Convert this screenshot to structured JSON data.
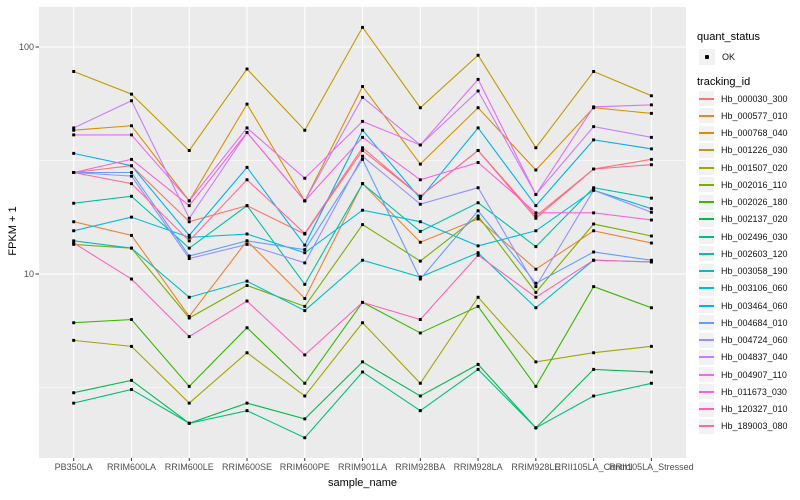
{
  "figure": {
    "background": "#FFFFFF",
    "panel_background": "#EBEBEB",
    "gridline_color": "#FFFFFF",
    "tick_color": "#333333",
    "tick_label_color": "#4D4D4D",
    "point_color": "#000000",
    "legend_key_fill": "#F2F2F2"
  },
  "chart_data": {
    "type": "line",
    "title": "",
    "xlabel": "sample_name",
    "ylabel": "FPKM + 1",
    "yscale": "log10",
    "ylim": [
      1.55,
      145
    ],
    "yticks": [
      10,
      100
    ],
    "ytick_labels": [
      "10",
      "100"
    ],
    "y_minor_gridlines": [
      3.162,
      31.62
    ],
    "grid": true,
    "legend_position": "right",
    "categories": [
      "PB350LA",
      "RRIM600LA",
      "RRIM600LE",
      "RRIM600SE",
      "RRIM600PE",
      "RRIM901LA",
      "RRIM928BA",
      "RRIM928LA",
      "RRIM928LE",
      "RRII105LA_Control",
      "RRII105LA_Stressed"
    ],
    "legend": {
      "quant_status_title": "quant_status",
      "quant_status_items": [
        {
          "label": "OK",
          "marker": "point",
          "color": "#000000"
        }
      ],
      "tracking_title": "tracking_id"
    },
    "series": [
      {
        "name": "Hb_000030_300",
        "color": "#F8766D",
        "values": [
          28,
          30,
          17,
          20,
          15,
          35,
          22,
          35,
          18,
          29,
          32
        ]
      },
      {
        "name": "Hb_000577_010",
        "color": "#EA8331",
        "values": [
          17,
          14.8,
          6.5,
          14,
          7.8,
          25,
          13.8,
          17.5,
          10.5,
          15.5,
          13.7
        ]
      },
      {
        "name": "Hb_000768_040",
        "color": "#D89000",
        "values": [
          43,
          45,
          21,
          56,
          21,
          67,
          30.5,
          54,
          28.7,
          54,
          51
        ]
      },
      {
        "name": "Hb_001226_030",
        "color": "#C09B00",
        "values": [
          78,
          62,
          35,
          80,
          43,
          122,
          54,
          92,
          36,
          78,
          61
        ]
      },
      {
        "name": "Hb_001507_020",
        "color": "#A3A500",
        "values": [
          5.1,
          4.8,
          2.7,
          4.5,
          2.9,
          6.1,
          3.3,
          7.9,
          4.1,
          4.5,
          4.8
        ]
      },
      {
        "name": "Hb_002016_110",
        "color": "#7CAE00",
        "values": [
          13.5,
          13,
          6.4,
          8.9,
          7.2,
          16.5,
          11.4,
          18,
          8.3,
          16.6,
          14.7
        ]
      },
      {
        "name": "Hb_002026_180",
        "color": "#39B600",
        "values": [
          6.1,
          6.3,
          3.2,
          5.8,
          3.3,
          7.5,
          5.5,
          7.2,
          3.2,
          8.8,
          7.1
        ]
      },
      {
        "name": "Hb_002137_020",
        "color": "#00BB4E",
        "values": [
          3.0,
          3.4,
          2.2,
          2.7,
          2.3,
          4.1,
          2.9,
          4.0,
          2.1,
          3.8,
          3.7
        ]
      },
      {
        "name": "Hb_002496_030",
        "color": "#00BF7D",
        "values": [
          2.7,
          3.1,
          2.2,
          2.5,
          1.9,
          3.7,
          2.5,
          3.8,
          2.1,
          2.9,
          3.3
        ]
      },
      {
        "name": "Hb_002603_120",
        "color": "#00C1A3",
        "values": [
          20.5,
          22,
          13,
          20,
          9,
          25,
          15.4,
          20.6,
          13.2,
          24,
          21.6
        ]
      },
      {
        "name": "Hb_003058_190",
        "color": "#00BFC4",
        "values": [
          14,
          13,
          7.9,
          9.3,
          6.9,
          11.5,
          9.7,
          12.4,
          7.1,
          11.5,
          11.3
        ]
      },
      {
        "name": "Hb_003106_060",
        "color": "#00BAE0",
        "values": [
          15.5,
          17.8,
          14.5,
          15,
          12.4,
          19.1,
          17,
          13.3,
          15.5,
          23.4,
          19.4
        ]
      },
      {
        "name": "Hb_003464_060",
        "color": "#00B0F6",
        "values": [
          34,
          30,
          14.8,
          29.5,
          13.4,
          43,
          21.5,
          44,
          20,
          39,
          35.6
        ]
      },
      {
        "name": "Hb_004684_010",
        "color": "#619CFF",
        "values": [
          28,
          28,
          12,
          14,
          12.8,
          32,
          9.5,
          19,
          9.1,
          12.5,
          11.5
        ]
      },
      {
        "name": "Hb_004724_060",
        "color": "#9590FF",
        "values": [
          28,
          27,
          11.7,
          13.5,
          11.2,
          33,
          20.3,
          24,
          8.8,
          23.4,
          18.7
        ]
      },
      {
        "name": "Hb_004837_040",
        "color": "#C77CFF",
        "values": [
          44,
          58,
          17.6,
          42,
          21,
          60,
          37,
          64,
          22.4,
          44.6,
          40
        ]
      },
      {
        "name": "Hb_004907_110",
        "color": "#E76BF3",
        "values": [
          41,
          41,
          21,
          44,
          26.4,
          47,
          37,
          72,
          22.4,
          54.5,
          55.6
        ]
      },
      {
        "name": "Hb_011673_030",
        "color": "#FA62DB",
        "values": [
          28,
          32,
          20,
          42,
          21,
          40,
          26,
          31,
          18.6,
          18.6,
          17.3
        ]
      },
      {
        "name": "Hb_120327_010",
        "color": "#FF62BC",
        "values": [
          13.7,
          9.5,
          5.3,
          7.6,
          4.4,
          7.5,
          6.3,
          12.1,
          7.9,
          11.5,
          11.3
        ]
      },
      {
        "name": "Hb_189003_080",
        "color": "#FF6A98",
        "values": [
          28,
          25,
          14,
          26,
          15.1,
          36,
          22,
          35,
          17.6,
          29,
          30.3
        ]
      }
    ]
  }
}
